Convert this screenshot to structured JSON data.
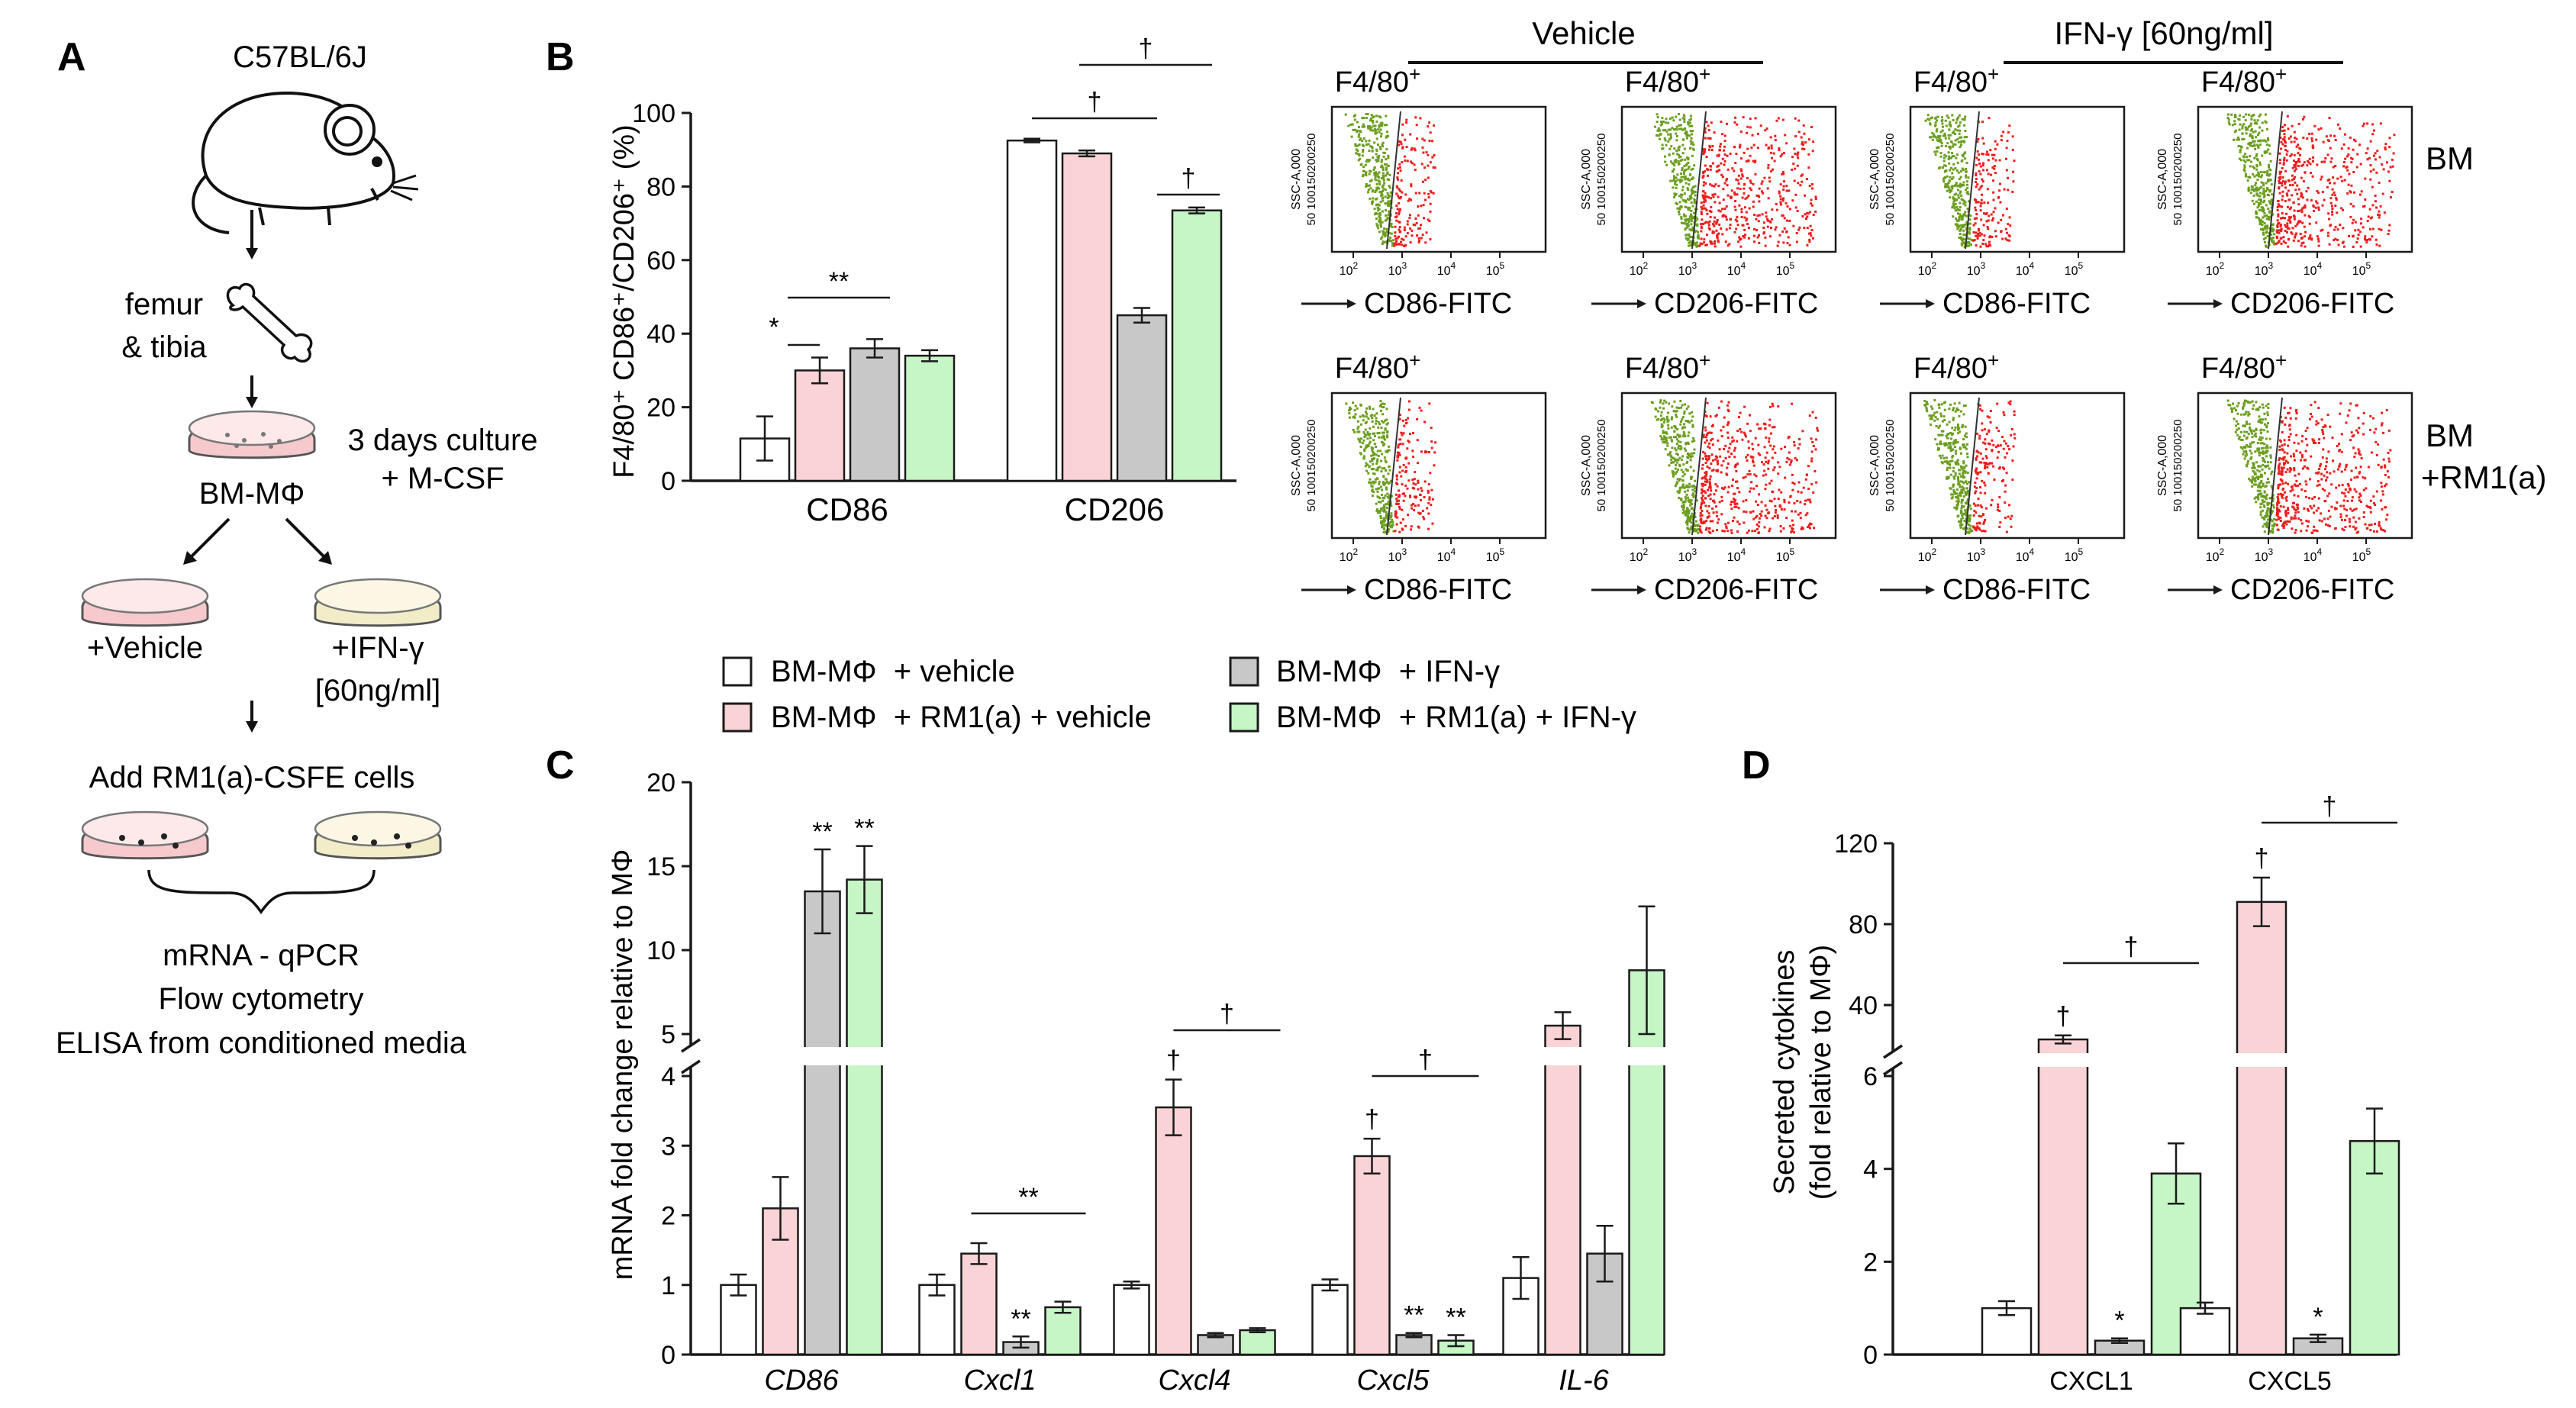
{
  "colors": {
    "white": "#ffffff",
    "pink": "#f9d3d6",
    "gray": "#c8c8c8",
    "green": "#c6f5c6",
    "outline": "#1a1a1a",
    "gate_green": "#6b9e1f",
    "gate_red": "#ee1c1c"
  },
  "panelA": {
    "letter": "A",
    "mouse_label": "C57BL/6J",
    "bone_label_1": "femur",
    "bone_label_2": "& tibia",
    "culture_label_1": "3 days culture",
    "culture_label_2": "+ M-CSF",
    "dish_label": "BM-MΦ",
    "vehicle_label": "+Vehicle",
    "ifn_label_1": "+IFN-γ",
    "ifn_label_2": "[60ng/ml]",
    "add_cells_label": "Add RM1(a)-CSFE cells",
    "assay_1": "mRNA - qPCR",
    "assay_2": "Flow cytometry",
    "assay_3": "ELISA from conditioned media"
  },
  "legend": [
    {
      "label": "BM-MΦ  + vehicle",
      "color": "#ffffff"
    },
    {
      "label": "BM-MΦ  + RM1(a) + vehicle",
      "color": "#f9d3d6"
    },
    {
      "label": "BM-MΦ  + IFN-γ",
      "color": "#c8c8c8"
    },
    {
      "label": "BM-MΦ  + RM1(a) + IFN-γ",
      "color": "#c6f5c6"
    }
  ],
  "flow": {
    "vehicle_header": "Vehicle",
    "ifn_header": "IFN-γ [60ng/ml]",
    "row_labels": [
      "BM",
      "BM",
      "+RM1(a)"
    ],
    "gate_label": "F4/80",
    "gate_sup": "+",
    "xlabels": [
      "CD86-FITC",
      "CD206-FITC",
      "CD86-FITC",
      "CD206-FITC"
    ],
    "ylabel": "SSC-A,000",
    "yticks": "50 100150200250",
    "xticks": [
      "10",
      "10",
      "10",
      "10"
    ],
    "xtick_exps": [
      "2",
      "3",
      "4",
      "5"
    ]
  },
  "chart_data": [
    {
      "panel": "B",
      "type": "bar",
      "ylabel": "F4/80⁺ CD86⁺/CD206⁺ (%)",
      "ylim": [
        0,
        100
      ],
      "yticks": [
        "0",
        "20",
        "40",
        "60",
        "80",
        "100"
      ],
      "categories": [
        "CD86",
        "CD206"
      ],
      "series": [
        {
          "name": "BM-MΦ + vehicle",
          "values": [
            11.5,
            92.5
          ],
          "errors": [
            6,
            0.5
          ]
        },
        {
          "name": "BM-MΦ + RM1(a) + vehicle",
          "values": [
            30,
            89
          ],
          "errors": [
            3.5,
            0.8
          ]
        },
        {
          "name": "BM-MΦ + IFN-γ",
          "values": [
            36,
            45
          ],
          "errors": [
            2.5,
            2
          ]
        },
        {
          "name": "BM-MΦ + RM1(a) + IFN-γ",
          "values": [
            34,
            73.5
          ],
          "errors": [
            1.5,
            0.8
          ]
        }
      ],
      "annotations": [
        "*",
        "**",
        "†",
        "†",
        "†"
      ]
    },
    {
      "panel": "C",
      "type": "bar",
      "ylabel": "mRNA fold change relative to MΦ",
      "ylim_lower": [
        0,
        4
      ],
      "ylim_upper": [
        5,
        20
      ],
      "yticks_lower": [
        "0",
        "1",
        "2",
        "3",
        "4"
      ],
      "yticks_upper": [
        "5",
        "10",
        "15",
        "20"
      ],
      "categories": [
        "CD86",
        "Cxcl1",
        "Cxcl4",
        "Cxcl5",
        "IL-6"
      ],
      "series": [
        {
          "name": "BM-MΦ + vehicle",
          "values": [
            1.0,
            1.0,
            1.0,
            1.0,
            1.1
          ],
          "errors": [
            0.15,
            0.15,
            0.05,
            0.08,
            0.3
          ]
        },
        {
          "name": "BM-MΦ + RM1(a) + vehicle",
          "values": [
            2.1,
            1.45,
            3.55,
            2.85,
            5.5
          ],
          "errors": [
            0.45,
            0.15,
            0.4,
            0.25,
            0.8
          ]
        },
        {
          "name": "BM-MΦ + IFN-γ",
          "values": [
            13.5,
            0.18,
            0.28,
            0.28,
            1.45
          ],
          "errors": [
            2.5,
            0.08,
            0.03,
            0.03,
            0.4
          ]
        },
        {
          "name": "BM-MΦ + RM1(a) + IFN-γ",
          "values": [
            14.2,
            0.68,
            0.35,
            0.2,
            8.8
          ],
          "errors": [
            2.0,
            0.08,
            0.03,
            0.08,
            3.8
          ]
        }
      ],
      "annotations": [
        "**",
        "**",
        "**",
        "**",
        "**",
        "**",
        "†",
        "†",
        "†",
        "†"
      ]
    },
    {
      "panel": "D",
      "type": "bar",
      "ylabel_1": "Secreted cytokines",
      "ylabel_2": "(fold relative to MΦ)",
      "ylim_lower": [
        0,
        6
      ],
      "ylim_upper": [
        20,
        120
      ],
      "yticks_lower": [
        "0",
        "2",
        "4",
        "6"
      ],
      "yticks_upper": [
        "40",
        "80",
        "120"
      ],
      "categories": [
        "CXCL1",
        "CXCL5"
      ],
      "series": [
        {
          "name": "BM-MΦ + vehicle",
          "values": [
            1.0,
            1.0
          ],
          "errors": [
            0.15,
            0.12
          ]
        },
        {
          "name": "BM-MΦ + RM1(a) + vehicle",
          "values": [
            23,
            91
          ],
          "errors": [
            2,
            12
          ]
        },
        {
          "name": "BM-MΦ + IFN-γ",
          "values": [
            0.3,
            0.35
          ],
          "errors": [
            0.05,
            0.08
          ]
        },
        {
          "name": "BM-MΦ + RM1(a) + IFN-γ",
          "values": [
            3.9,
            4.6
          ],
          "errors": [
            0.65,
            0.7
          ]
        }
      ],
      "annotations": [
        "†",
        "*",
        "†",
        "†",
        "*",
        "†"
      ]
    }
  ],
  "panel_letters": {
    "B": "B",
    "C": "C",
    "D": "D"
  }
}
